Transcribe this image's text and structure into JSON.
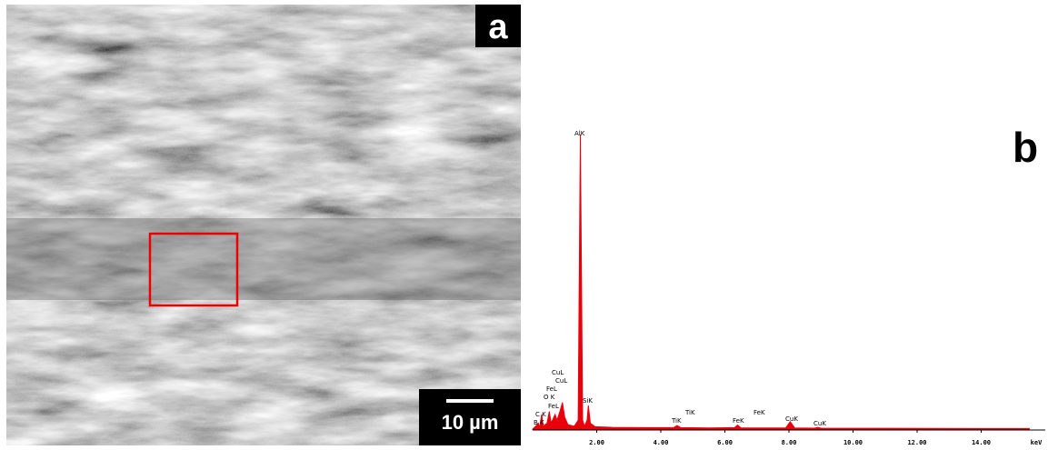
{
  "panel_a": {
    "label": "a",
    "scale_bar": "10 µm"
  },
  "chart_data": {
    "type": "area",
    "panel_label": "b",
    "x_label": "keV",
    "color": "#e8000b",
    "xlim": [
      0,
      16
    ],
    "ylim": [
      0,
      100
    ],
    "xticks": [
      {
        "value": 2,
        "label": "2.00"
      },
      {
        "value": 4,
        "label": "4.00"
      },
      {
        "value": 6,
        "label": "6.00"
      },
      {
        "value": 8,
        "label": "8.00"
      },
      {
        "value": 10,
        "label": "10.00"
      },
      {
        "value": 12,
        "label": "12.00"
      },
      {
        "value": 14,
        "label": "14.00"
      }
    ],
    "x": [
      0,
      0.1,
      0.18,
      0.22,
      0.28,
      0.33,
      0.45,
      0.52,
      0.58,
      0.66,
      0.7,
      0.76,
      0.85,
      0.93,
      1.0,
      1.1,
      1.3,
      1.42,
      1.49,
      1.56,
      1.62,
      1.7,
      1.74,
      1.8,
      1.95,
      2.5,
      3.5,
      4.4,
      4.51,
      4.62,
      5.5,
      6.3,
      6.4,
      6.5,
      7.9,
      8.04,
      8.18,
      8.8,
      8.9,
      9.0,
      14.0,
      15.5
    ],
    "values": [
      0,
      1,
      2,
      0.5,
      5,
      1,
      2,
      6,
      2,
      4,
      5,
      3,
      6,
      9,
      4,
      1.5,
      1,
      3,
      100,
      3,
      1,
      3,
      8,
      2,
      0.8,
      0.6,
      0.5,
      0.5,
      1.2,
      0.5,
      0.4,
      0.5,
      1.4,
      0.4,
      0.4,
      2.5,
      0.4,
      0.3,
      0.6,
      0.3,
      0.2,
      0.2
    ],
    "peak_labels": [
      "B K",
      "C K",
      "O K",
      "FeL",
      "FeL",
      "CuL",
      "CuL",
      "AlK",
      "SiK",
      "TiK",
      "TiK",
      "FeK",
      "FeK",
      "CuK",
      "CuK"
    ]
  }
}
